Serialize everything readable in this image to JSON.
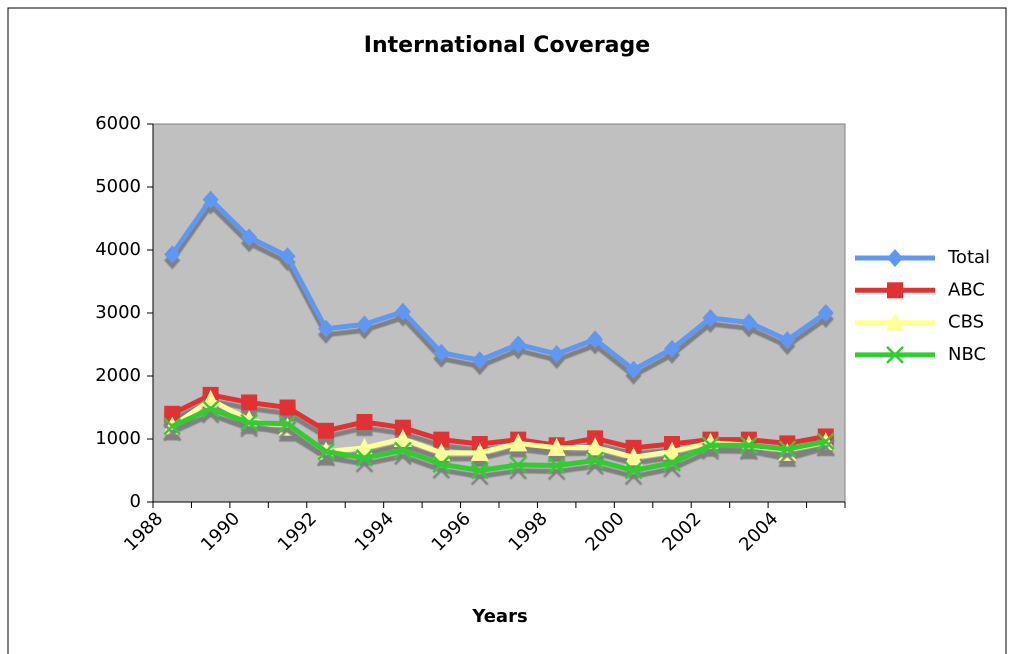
{
  "chart_data": {
    "type": "line",
    "title": "International Coverage",
    "x_label": "Years",
    "categories": [
      "1988",
      null,
      "1990",
      null,
      "1992",
      null,
      "1994",
      null,
      "1996",
      null,
      "1998",
      null,
      "2000",
      null,
      "2002",
      null,
      "2004",
      null
    ],
    "series": [
      {
        "name": "Total",
        "color": "#5f97f2",
        "marker": "diamond",
        "values": [
          3930,
          4800,
          4200,
          3900,
          2750,
          2820,
          3020,
          2370,
          2250,
          2500,
          2350,
          2580,
          2100,
          2430,
          2920,
          2850,
          2570,
          3000
        ]
      },
      {
        "name": "ABC",
        "color": "#e03232",
        "marker": "square",
        "values": [
          1400,
          1700,
          1580,
          1500,
          1130,
          1270,
          1180,
          990,
          920,
          990,
          900,
          1010,
          860,
          920,
          990,
          990,
          930,
          1040
        ]
      },
      {
        "name": "CBS",
        "color": "#ffff99",
        "marker": "triangle",
        "values": [
          1200,
          1620,
          1300,
          1180,
          800,
          860,
          1000,
          780,
          780,
          930,
          860,
          870,
          710,
          800,
          940,
          900,
          780,
          950
        ]
      },
      {
        "name": "NBC",
        "color": "#33cc33",
        "marker": "x",
        "values": [
          1200,
          1480,
          1260,
          1240,
          800,
          700,
          820,
          600,
          500,
          590,
          580,
          660,
          500,
          620,
          900,
          900,
          840,
          960
        ]
      }
    ],
    "ylim": [
      0,
      6000
    ],
    "yticks": [
      0,
      1000,
      2000,
      3000,
      4000,
      5000,
      6000
    ],
    "grid": false,
    "legend": "right",
    "plot_background": "#c0c0c0"
  }
}
